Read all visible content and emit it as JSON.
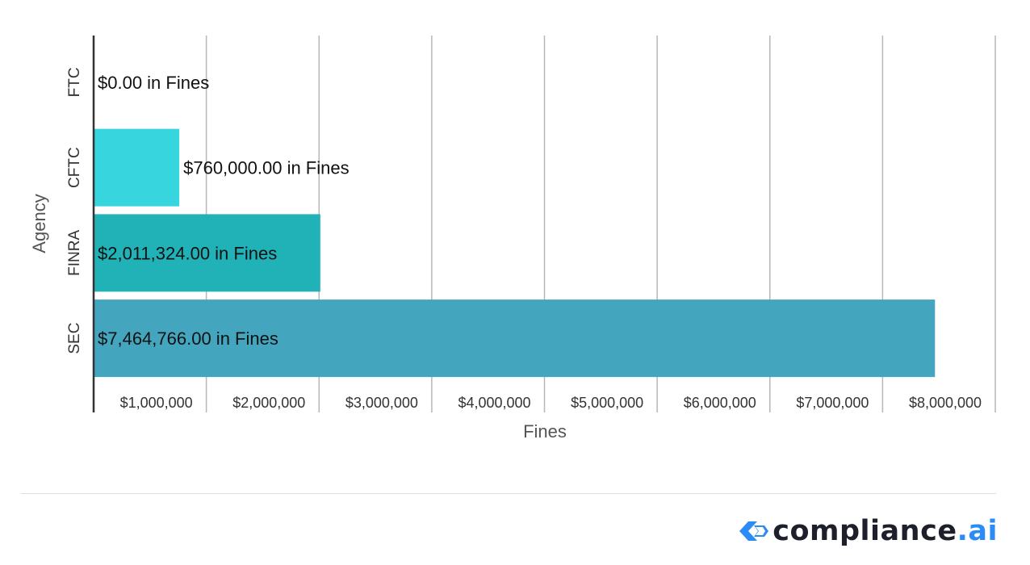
{
  "chart_data": {
    "type": "bar",
    "orientation": "horizontal",
    "categories": [
      "FTC",
      "CFTC",
      "FINRA",
      "SEC"
    ],
    "values": [
      0,
      760000,
      2011324,
      7464766
    ],
    "data_labels": [
      "$0.00 in Fines",
      "$760,000.00 in Fines",
      "$2,011,324.00 in Fines",
      "$7,464,766.00 in Fines"
    ],
    "bar_colors": [
      "#37d5de",
      "#37d5de",
      "#21b2b8",
      "#43a6be"
    ],
    "xlabel": "Fines",
    "ylabel": "Agency",
    "xlim": [
      0,
      8000000
    ],
    "x_ticks": [
      1000000,
      2000000,
      3000000,
      4000000,
      5000000,
      6000000,
      7000000,
      8000000
    ],
    "x_tick_labels": [
      "$1,000,000",
      "$2,000,000",
      "$3,000,000",
      "$4,000,000",
      "$5,000,000",
      "$6,000,000",
      "$7,000,000",
      "$8,000,000"
    ],
    "grid": true
  },
  "logo": {
    "text_main": "compliance",
    "text_dot": ".",
    "text_ai": "ai",
    "icon": "chevron-diamond-icon",
    "accent_color": "#2a8cf4"
  }
}
